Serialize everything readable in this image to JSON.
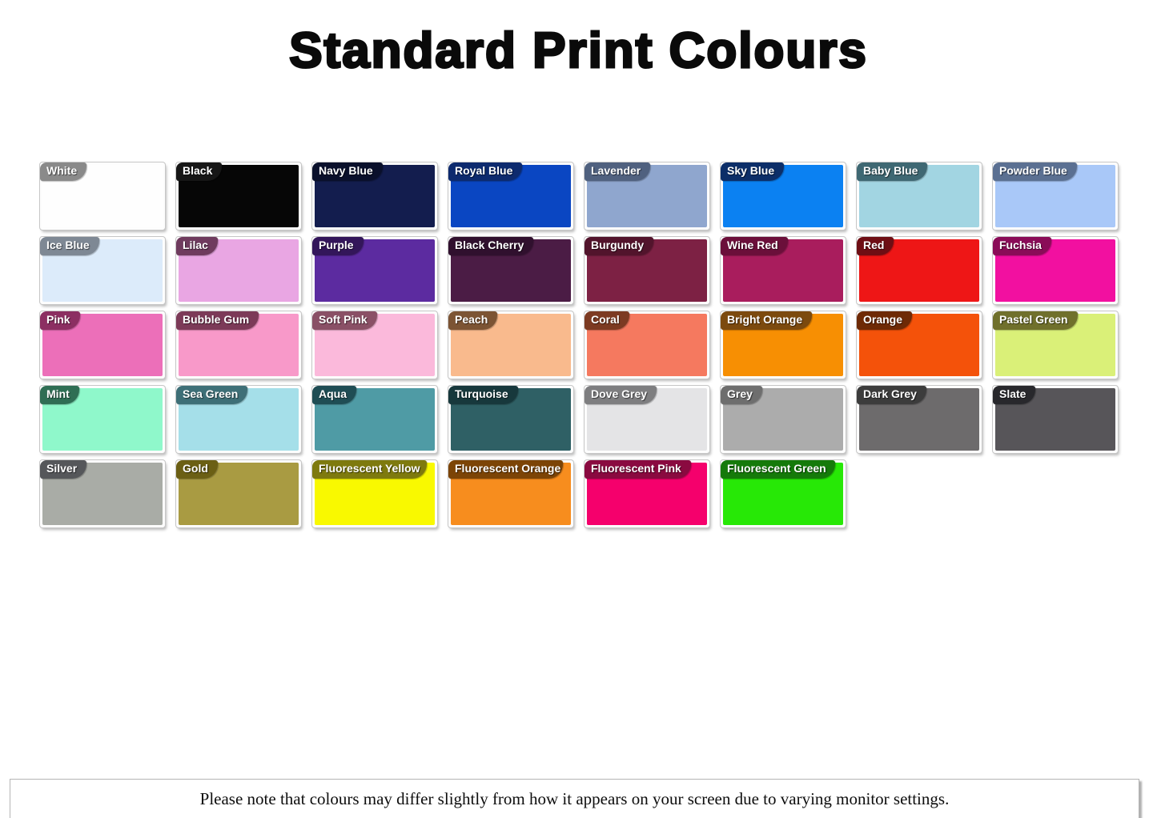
{
  "title": "Standard Print Colours",
  "footer_note": "Please note that colours may differ slightly from how it appears on your screen due to varying monitor settings.",
  "style": {
    "page_background": "#ffffff",
    "title_color": "#0a0a0a",
    "tag_text_color": "#ffffff"
  },
  "rows": [
    [
      {
        "label": "White",
        "swatch": "#FEFEFE",
        "tag": "#8A8A8A"
      },
      {
        "label": "Black",
        "swatch": "#060606",
        "tag": "#161616"
      },
      {
        "label": "Navy Blue",
        "swatch": "#131D4E",
        "tag": "#0A102B"
      },
      {
        "label": "Royal Blue",
        "swatch": "#0A46C2",
        "tag": "#0D2A6E"
      },
      {
        "label": "Lavender",
        "swatch": "#8FA6CE",
        "tag": "#50617F"
      },
      {
        "label": "Sky Blue",
        "swatch": "#0B81F2",
        "tag": "#0C2E68"
      },
      {
        "label": "Baby Blue",
        "swatch": "#A2D5E2",
        "tag": "#3F6873"
      },
      {
        "label": "Powder Blue",
        "swatch": "#A9C8F8",
        "tag": "#5B7092"
      }
    ],
    [
      {
        "label": "Ice Blue",
        "swatch": "#DCEBFA",
        "tag": "#7E8894"
      },
      {
        "label": "Lilac",
        "swatch": "#E9A6E3",
        "tag": "#6F3B5E"
      },
      {
        "label": "Purple",
        "swatch": "#5C2BA0",
        "tag": "#33165A"
      },
      {
        "label": "Black Cherry",
        "swatch": "#4B1C45",
        "tag": "#30102E"
      },
      {
        "label": "Burgundy",
        "swatch": "#7D2144",
        "tag": "#52142C"
      },
      {
        "label": "Wine Red",
        "swatch": "#A91D5D",
        "tag": "#6B0F3A"
      },
      {
        "label": "Red",
        "swatch": "#EE1616",
        "tag": "#6E0E14"
      },
      {
        "label": "Fuchsia",
        "swatch": "#F210A0",
        "tag": "#8A0C58"
      }
    ],
    [
      {
        "label": "Pink",
        "swatch": "#EC6FB9",
        "tag": "#8C2F62"
      },
      {
        "label": "Bubble Gum",
        "swatch": "#F899C9",
        "tag": "#7C3A58"
      },
      {
        "label": "Soft Pink",
        "swatch": "#FBB9DB",
        "tag": "#8A5066"
      },
      {
        "label": "Peach",
        "swatch": "#F9BA8D",
        "tag": "#7C5434"
      },
      {
        "label": "Coral",
        "swatch": "#F5795F",
        "tag": "#7C3A22"
      },
      {
        "label": "Bright Orange",
        "swatch": "#F78F03",
        "tag": "#7C4A0E"
      },
      {
        "label": "Orange",
        "swatch": "#F4520A",
        "tag": "#6E2A06"
      },
      {
        "label": "Pastel Green",
        "swatch": "#DAF078",
        "tag": "#70702C"
      }
    ],
    [
      {
        "label": "Mint",
        "swatch": "#8FF8CB",
        "tag": "#2F6E54"
      },
      {
        "label": "Sea Green",
        "swatch": "#A5DFE9",
        "tag": "#3E6F77"
      },
      {
        "label": "Aqua",
        "swatch": "#4F9BA5",
        "tag": "#1F4D54"
      },
      {
        "label": "Turquoise",
        "swatch": "#2F6065",
        "tag": "#17383C"
      },
      {
        "label": "Dove Grey",
        "swatch": "#E4E4E6",
        "tag": "#7E7E80"
      },
      {
        "label": "Grey",
        "swatch": "#ACACAC",
        "tag": "#6E6E6E"
      },
      {
        "label": "Dark Grey",
        "swatch": "#6D6B6C",
        "tag": "#3C3C3C"
      },
      {
        "label": "Slate",
        "swatch": "#575559",
        "tag": "#28282C"
      }
    ],
    [
      {
        "label": "Silver",
        "swatch": "#A9ACA6",
        "tag": "#55575A",
        "textured": true
      },
      {
        "label": "Gold",
        "swatch": "#A99B42",
        "tag": "#6B5F14",
        "textured": true
      },
      {
        "label": "Fluorescent Yellow",
        "swatch": "#F9F900",
        "tag": "#7E7A0E"
      },
      {
        "label": "Fluorescent Orange",
        "swatch": "#F78D1E",
        "tag": "#7C4406"
      },
      {
        "label": "Fluorescent Pink",
        "swatch": "#F5006C",
        "tag": "#8A0A40"
      },
      {
        "label": "Fluorescent Green",
        "swatch": "#27E806",
        "tag": "#157A0A"
      }
    ]
  ]
}
